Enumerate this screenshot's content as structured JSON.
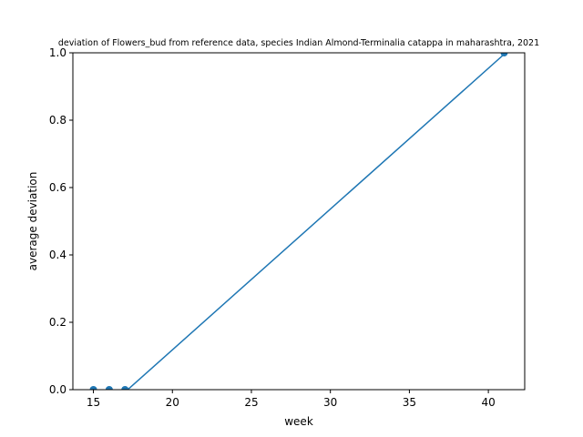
{
  "chart_data": {
    "type": "line",
    "title": "deviation of Flowers_bud from reference data, species Indian Almond-Terminalia catappa in maharashtra, 2021",
    "xlabel": "week",
    "ylabel": "average deviation",
    "xlim": [
      13.7,
      42.3
    ],
    "ylim": [
      0,
      1.0
    ],
    "xticks": [
      15,
      20,
      25,
      30,
      35,
      40
    ],
    "yticks": [
      0.0,
      0.2,
      0.4,
      0.6,
      0.8,
      1.0
    ],
    "xtick_labels": [
      "15",
      "20",
      "25",
      "30",
      "35",
      "40"
    ],
    "ytick_labels": [
      "0.0",
      "0.2",
      "0.4",
      "0.6",
      "0.8",
      "1.0"
    ],
    "grid": false,
    "series": [
      {
        "color": "#1f77b4",
        "points": [
          [
            15,
            0
          ],
          [
            16,
            0
          ],
          [
            17,
            0
          ],
          [
            41,
            1
          ]
        ]
      }
    ],
    "line_color": "#1f77b4",
    "line_x": [
      14.8,
      17.1,
      41.1,
      42.3
    ],
    "line_y": [
      -0.003,
      -0.003,
      1.0,
      1.045
    ]
  }
}
